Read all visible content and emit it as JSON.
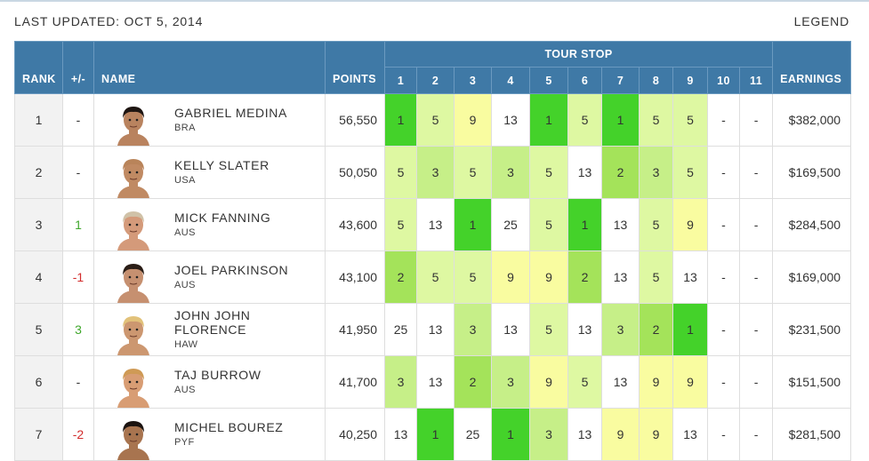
{
  "header": {
    "last_updated": "LAST UPDATED: OCT 5, 2014",
    "legend": "LEGEND"
  },
  "table": {
    "columns": {
      "rank": "RANK",
      "change": "+/-",
      "name": "NAME",
      "points": "POINTS",
      "tour_stop": "TOUR STOP",
      "earnings": "EARNINGS"
    },
    "stops": [
      "1",
      "2",
      "3",
      "4",
      "5",
      "6",
      "7",
      "8",
      "9",
      "10",
      "11"
    ],
    "heat_colors": {
      "1": "#44d22a",
      "2": "#a4e35a",
      "3": "#c6ef88",
      "5": "#def8a2",
      "9": "#f9fca0"
    },
    "rows": [
      {
        "rank": "1",
        "change": "-",
        "change_type": "neu",
        "name": "GABRIEL MEDINA",
        "country": "BRA",
        "points": "56,550",
        "results": [
          "1",
          "5",
          "9",
          "13",
          "1",
          "5",
          "1",
          "5",
          "5",
          "-",
          "-"
        ],
        "earnings": "$382,000",
        "hair": "#1e1512",
        "skin": "#b9835f"
      },
      {
        "rank": "2",
        "change": "-",
        "change_type": "neu",
        "name": "KELLY SLATER",
        "country": "USA",
        "points": "50,050",
        "results": [
          "5",
          "3",
          "5",
          "3",
          "5",
          "13",
          "2",
          "3",
          "5",
          "-",
          "-"
        ],
        "earnings": "$169,500",
        "hair": "#b9845a",
        "skin": "#c08a63"
      },
      {
        "rank": "3",
        "change": "1",
        "change_type": "pos",
        "name": "MICK FANNING",
        "country": "AUS",
        "points": "43,600",
        "results": [
          "5",
          "13",
          "1",
          "25",
          "5",
          "1",
          "13",
          "5",
          "9",
          "-",
          "-"
        ],
        "earnings": "$284,500",
        "hair": "#d0c2a8",
        "skin": "#d49a7a"
      },
      {
        "rank": "4",
        "change": "-1",
        "change_type": "neg",
        "name": "JOEL PARKINSON",
        "country": "AUS",
        "points": "43,100",
        "results": [
          "2",
          "5",
          "5",
          "9",
          "9",
          "2",
          "13",
          "5",
          "13",
          "-",
          "-"
        ],
        "earnings": "$169,000",
        "hair": "#2a1d16",
        "skin": "#c69070"
      },
      {
        "rank": "5",
        "change": "3",
        "change_type": "pos",
        "name": "JOHN JOHN FLORENCE",
        "country": "HAW",
        "points": "41,950",
        "results": [
          "25",
          "13",
          "3",
          "13",
          "5",
          "13",
          "3",
          "2",
          "1",
          "-",
          "-"
        ],
        "earnings": "$231,500",
        "hair": "#e2c27a",
        "skin": "#cc9770"
      },
      {
        "rank": "6",
        "change": "-",
        "change_type": "neu",
        "name": "TAJ BURROW",
        "country": "AUS",
        "points": "41,700",
        "results": [
          "3",
          "13",
          "2",
          "3",
          "9",
          "5",
          "13",
          "9",
          "9",
          "-",
          "-"
        ],
        "earnings": "$151,500",
        "hair": "#cf9a55",
        "skin": "#d89d74"
      },
      {
        "rank": "7",
        "change": "-2",
        "change_type": "neg",
        "name": "MICHEL BOUREZ",
        "country": "PYF",
        "points": "40,250",
        "results": [
          "13",
          "1",
          "25",
          "1",
          "3",
          "13",
          "9",
          "9",
          "13",
          "-",
          "-"
        ],
        "earnings": "$281,500",
        "hair": "#1b1310",
        "skin": "#a8744f"
      }
    ]
  }
}
